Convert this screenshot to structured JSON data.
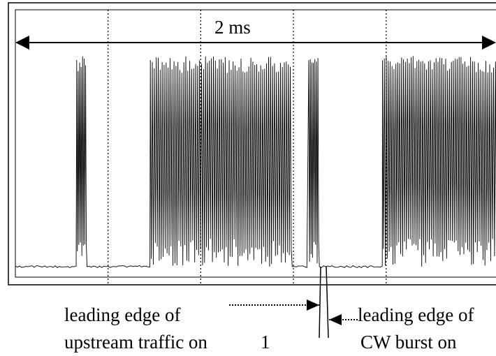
{
  "chart_data": {
    "type": "line",
    "title": "",
    "xlabel": "",
    "ylabel": "",
    "grid": "vertical dotted divisions",
    "span_label": "2 ms",
    "baseline_level": 0.03,
    "high_level": 1.0,
    "bursts": [
      {
        "name": "burst-1",
        "start": 0.248,
        "end": 0.29,
        "lines": 7,
        "seed": 3
      },
      {
        "name": "burst-2",
        "start": 0.546,
        "end": 1.12,
        "lines": 72,
        "seed": 11
      },
      {
        "name": "burst-3",
        "start": 1.187,
        "end": 1.23,
        "lines": 7,
        "seed": 21
      },
      {
        "name": "burst-4",
        "start": 1.485,
        "end": 1.95,
        "lines": 60,
        "seed": 37
      }
    ],
    "x_range": [
      0,
      1.95
    ],
    "divisions_x": [
      0.375,
      0.75,
      1.125,
      1.5
    ]
  },
  "annotations": {
    "span": "2 ms",
    "left_label_line1": "leading edge of",
    "left_label_line2": "upstream traffic on",
    "left_label_num": "1",
    "right_label_line1": "leading edge of",
    "right_label_line2": "CW burst on"
  },
  "colors": {
    "trace": "#000000",
    "background": "#ffffff"
  }
}
